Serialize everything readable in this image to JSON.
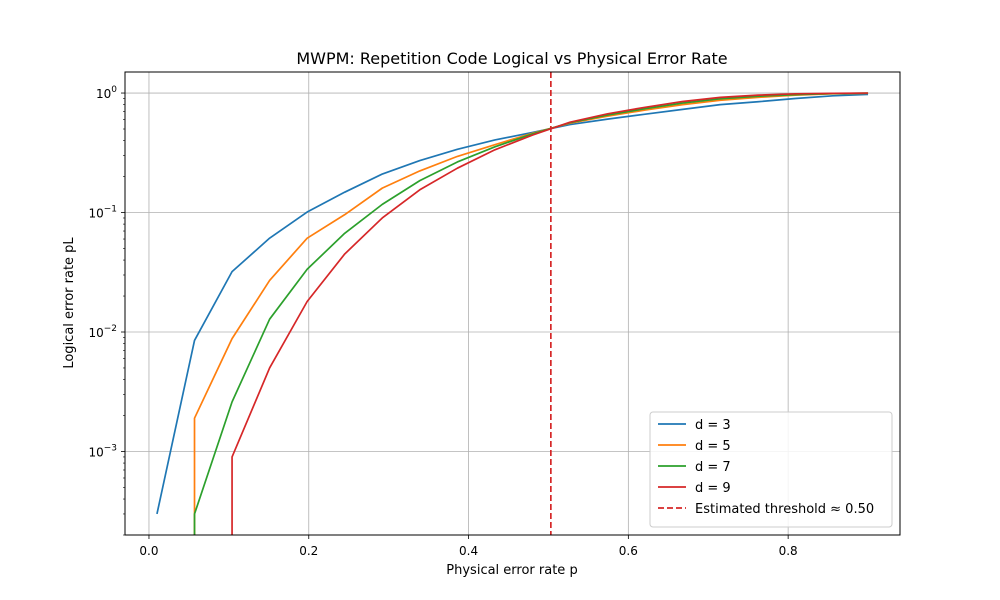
{
  "chart_data": {
    "type": "line",
    "title": "MWPM: Repetition Code Logical vs Physical Error Rate",
    "xlabel": "Physical error rate p",
    "ylabel": "Logical error rate pL",
    "xlim": [
      -0.03,
      0.94
    ],
    "ylim": [
      0.0002,
      1.5
    ],
    "yscale": "log",
    "grid": true,
    "legend_position": "lower-right",
    "x_ticks": [
      0.0,
      0.2,
      0.4,
      0.6,
      0.8
    ],
    "x_tick_labels": [
      "0.0",
      "0.2",
      "0.4",
      "0.6",
      "0.8"
    ],
    "y_ticks": [
      0.001,
      0.01,
      0.1,
      1
    ],
    "y_tick_labels": [
      {
        "base": "10",
        "exp": "−3"
      },
      {
        "base": "10",
        "exp": "−2"
      },
      {
        "base": "10",
        "exp": "−1"
      },
      {
        "base": "10",
        "exp": "0"
      }
    ],
    "series": [
      {
        "name": "d = 3",
        "color": "#1f77b4",
        "x": [
          0.01,
          0.057,
          0.104,
          0.151,
          0.198,
          0.245,
          0.292,
          0.339,
          0.386,
          0.433,
          0.48,
          0.527,
          0.574,
          0.621,
          0.668,
          0.715,
          0.762,
          0.809,
          0.856,
          0.9
        ],
        "y": [
          0.0003,
          0.0085,
          0.032,
          0.061,
          0.101,
          0.148,
          0.21,
          0.272,
          0.338,
          0.405,
          0.468,
          0.545,
          0.605,
          0.665,
          0.73,
          0.8,
          0.845,
          0.9,
          0.948,
          0.975
        ]
      },
      {
        "name": "d = 5",
        "color": "#ff7f0e",
        "x": [
          0.057,
          0.057,
          0.104,
          0.151,
          0.198,
          0.245,
          0.292,
          0.339,
          0.386,
          0.433,
          0.48,
          0.527,
          0.574,
          0.621,
          0.668,
          0.715,
          0.762,
          0.809,
          0.856,
          0.9
        ],
        "y": [
          0.0002,
          0.0019,
          0.0088,
          0.027,
          0.061,
          0.096,
          0.16,
          0.223,
          0.295,
          0.37,
          0.46,
          0.56,
          0.64,
          0.72,
          0.8,
          0.87,
          0.92,
          0.96,
          0.985,
          0.995
        ]
      },
      {
        "name": "d = 7",
        "color": "#2ca02c",
        "x": [
          0.057,
          0.057,
          0.104,
          0.151,
          0.198,
          0.245,
          0.292,
          0.339,
          0.386,
          0.433,
          0.48,
          0.527,
          0.574,
          0.621,
          0.668,
          0.715,
          0.762,
          0.809,
          0.856,
          0.9
        ],
        "y": [
          0.0002,
          0.0003,
          0.0026,
          0.0128,
          0.0335,
          0.067,
          0.117,
          0.185,
          0.265,
          0.355,
          0.455,
          0.565,
          0.655,
          0.74,
          0.825,
          0.895,
          0.94,
          0.97,
          0.99,
          0.998
        ]
      },
      {
        "name": "d = 9",
        "color": "#d62728",
        "x": [
          0.104,
          0.104,
          0.151,
          0.198,
          0.245,
          0.292,
          0.339,
          0.386,
          0.433,
          0.48,
          0.527,
          0.574,
          0.621,
          0.668,
          0.715,
          0.762,
          0.809,
          0.856,
          0.9
        ],
        "y": [
          0.0002,
          0.0009,
          0.005,
          0.018,
          0.045,
          0.09,
          0.155,
          0.235,
          0.335,
          0.445,
          0.57,
          0.67,
          0.76,
          0.85,
          0.92,
          0.96,
          0.985,
          0.995,
          1.0
        ]
      }
    ],
    "threshold": {
      "name": "Estimated threshold ≈ 0.50",
      "x": 0.503,
      "color": "#d62728",
      "style": "dashed"
    }
  }
}
